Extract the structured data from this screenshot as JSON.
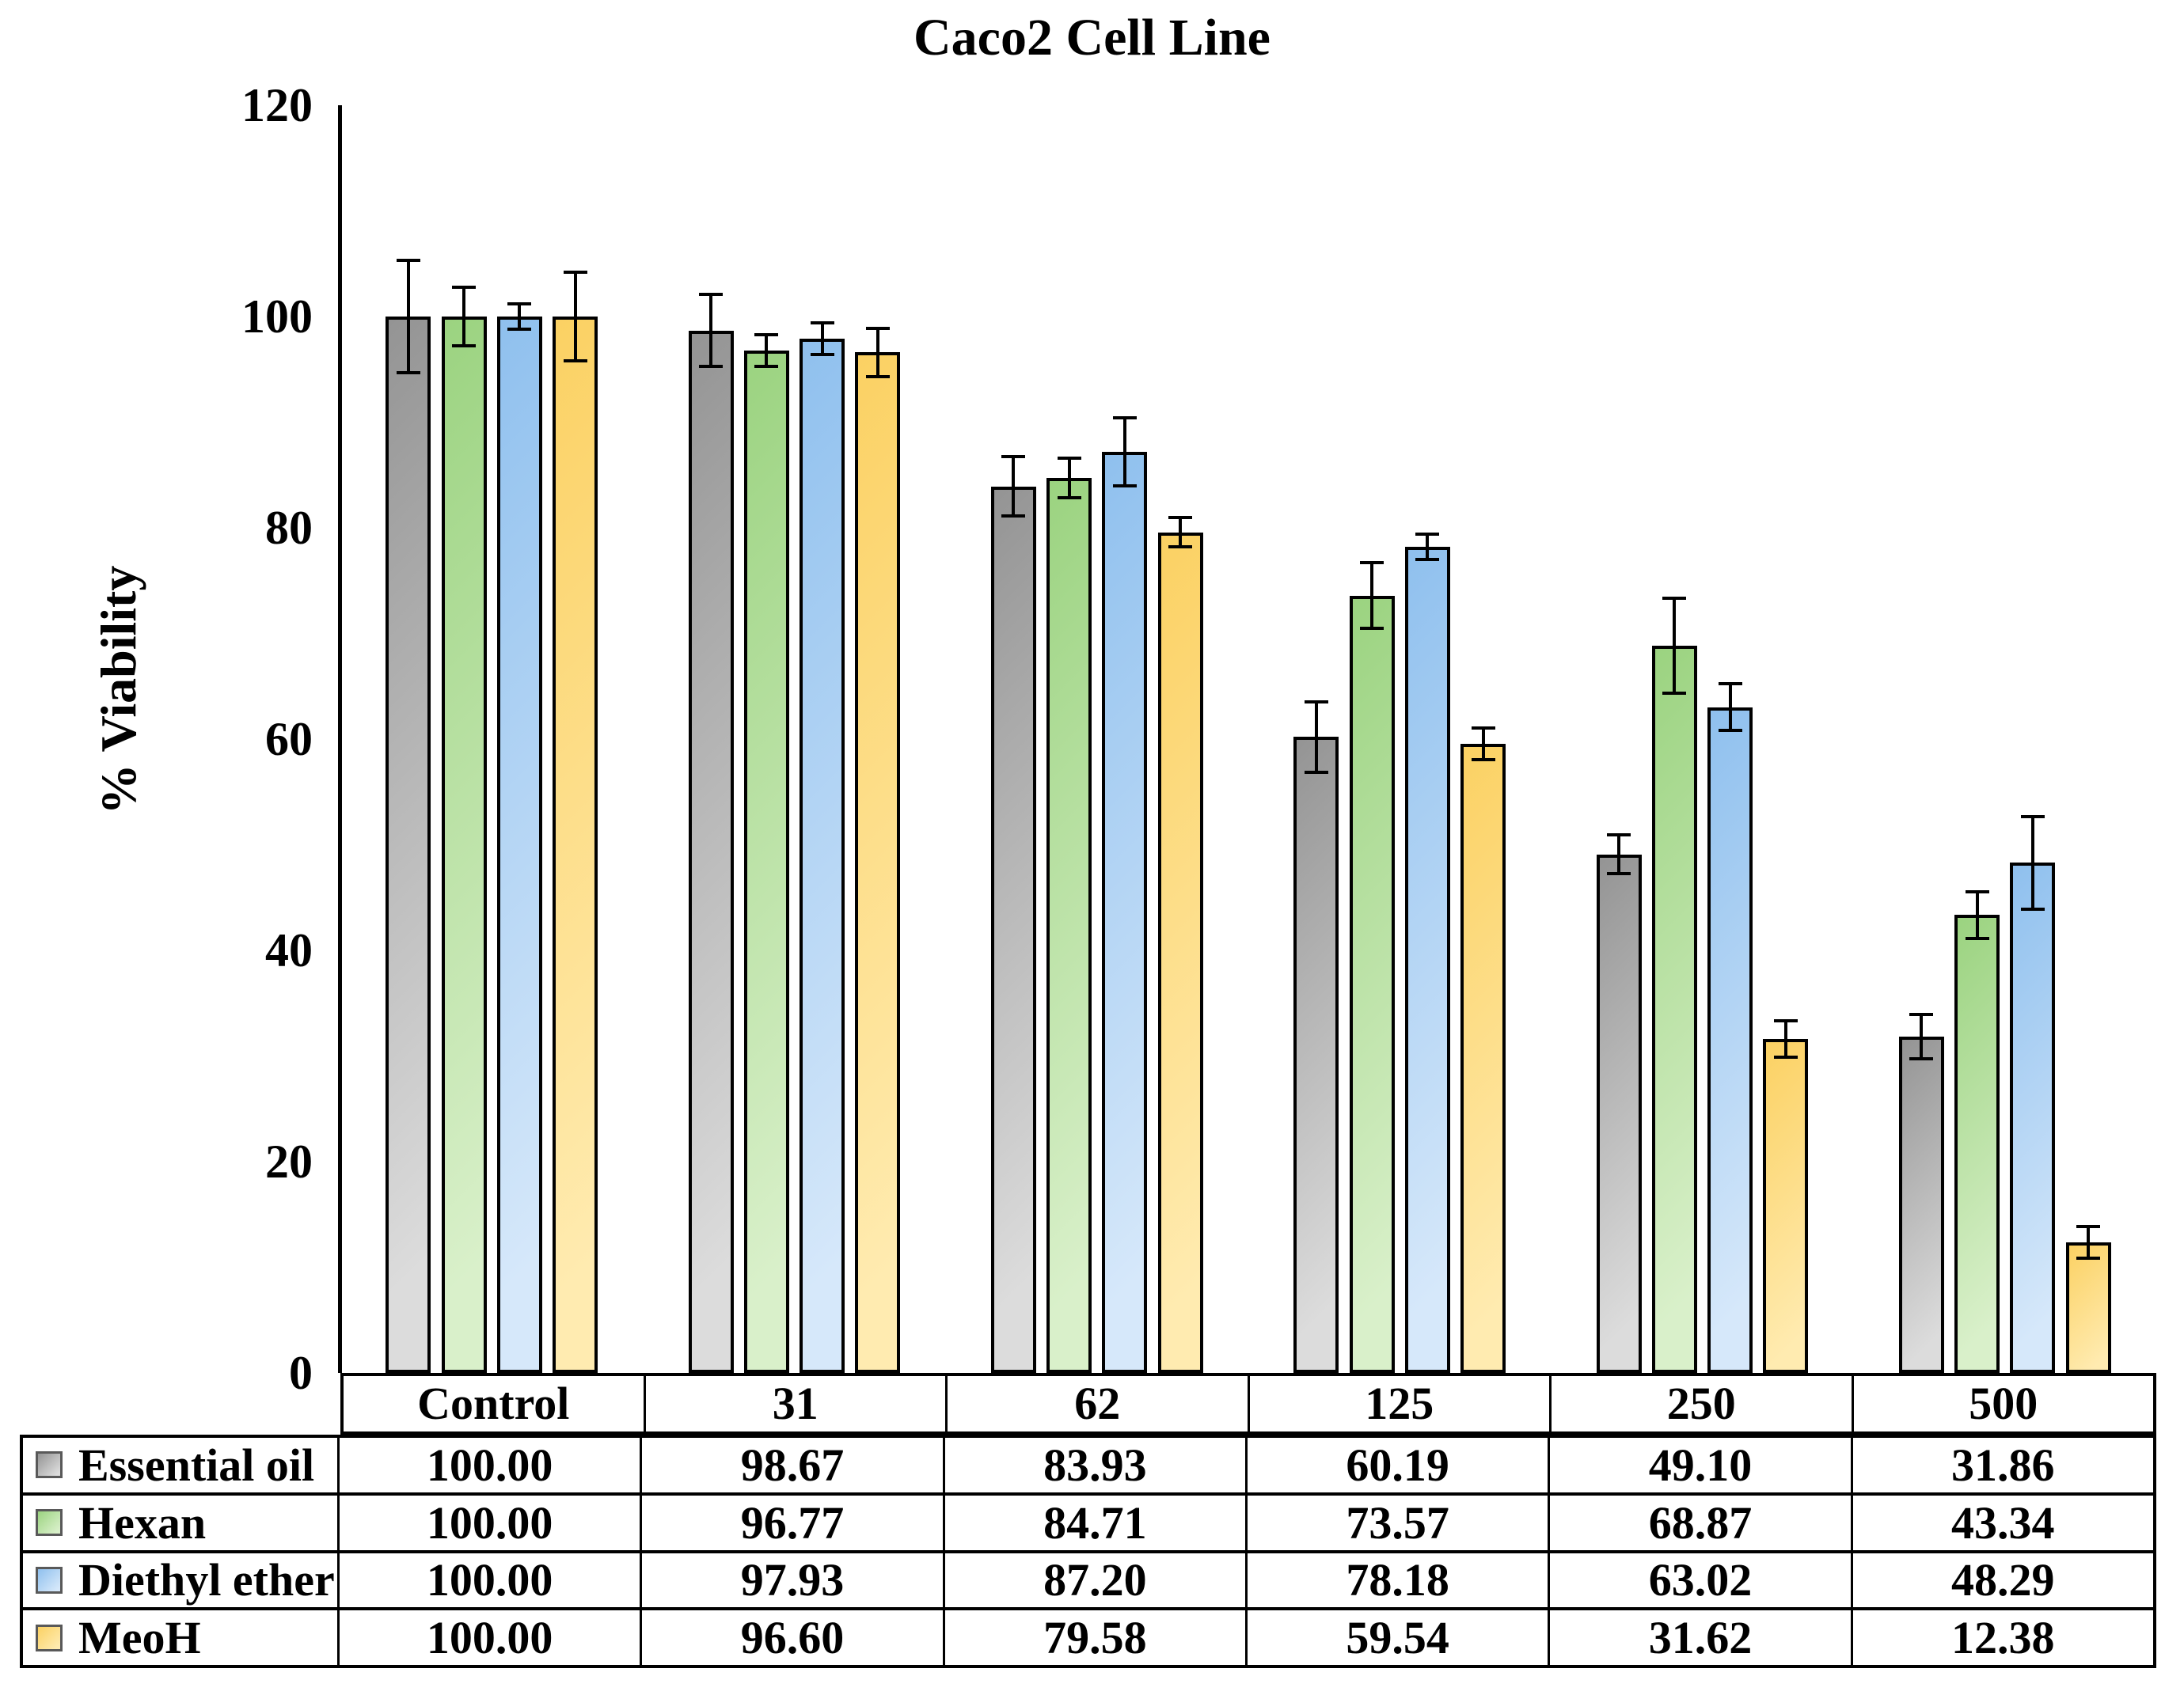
{
  "title": "Caco2 Cell Line",
  "y_axis": {
    "label": "% Viability",
    "ticks": [
      "120",
      "100",
      "80",
      "60",
      "40",
      "20",
      "0"
    ]
  },
  "chart_data": {
    "type": "bar",
    "title": "Caco2 Cell Line",
    "xlabel": "",
    "ylabel": "% Viability",
    "ylim": [
      0,
      120
    ],
    "grid": false,
    "error_bars": true,
    "legend_position": "table-left",
    "categories": [
      "Control",
      "31",
      "62",
      "125",
      "250",
      "500"
    ],
    "series": [
      {
        "name": "Essential oil",
        "color_dark": "#949494",
        "color_light": "#dcdcdc",
        "values": [
          100.0,
          98.67,
          83.93,
          60.19,
          49.1,
          31.86
        ],
        "errors": [
          5.3,
          3.4,
          2.8,
          3.3,
          1.8,
          2.1
        ]
      },
      {
        "name": "Hexan",
        "color_dark": "#9bd380",
        "color_light": "#d9f0ca",
        "values": [
          100.0,
          96.77,
          84.71,
          73.57,
          68.87,
          43.34
        ],
        "errors": [
          2.8,
          1.5,
          1.9,
          3.1,
          4.5,
          2.2
        ]
      },
      {
        "name": "Diethyl ether",
        "color_dark": "#8fc0ee",
        "color_light": "#d6e8fa",
        "values": [
          100.0,
          97.93,
          87.2,
          78.18,
          63.02,
          48.29
        ],
        "errors": [
          1.2,
          1.5,
          3.2,
          1.2,
          2.2,
          4.4
        ]
      },
      {
        "name": "MeoH",
        "color_dark": "#fbd163",
        "color_light": "#ffebb0",
        "values": [
          100.0,
          96.6,
          79.58,
          59.54,
          31.62,
          12.38
        ],
        "errors": [
          4.2,
          2.3,
          1.4,
          1.5,
          1.7,
          1.5
        ]
      }
    ]
  },
  "table": {
    "categories": [
      "Control",
      "31",
      "62",
      "125",
      "250",
      "500"
    ],
    "rows": [
      {
        "label": "Essential oil",
        "values": [
          "100.00",
          "98.67",
          "83.93",
          "60.19",
          "49.10",
          "31.86"
        ]
      },
      {
        "label": "Hexan",
        "values": [
          "100.00",
          "96.77",
          "84.71",
          "73.57",
          "68.87",
          "43.34"
        ]
      },
      {
        "label": "Diethyl ether",
        "values": [
          "100.00",
          "97.93",
          "87.20",
          "78.18",
          "63.02",
          "48.29"
        ]
      },
      {
        "label": "MeoH",
        "values": [
          "100.00",
          "96.60",
          "79.58",
          "59.54",
          "31.62",
          "12.38"
        ]
      }
    ]
  }
}
